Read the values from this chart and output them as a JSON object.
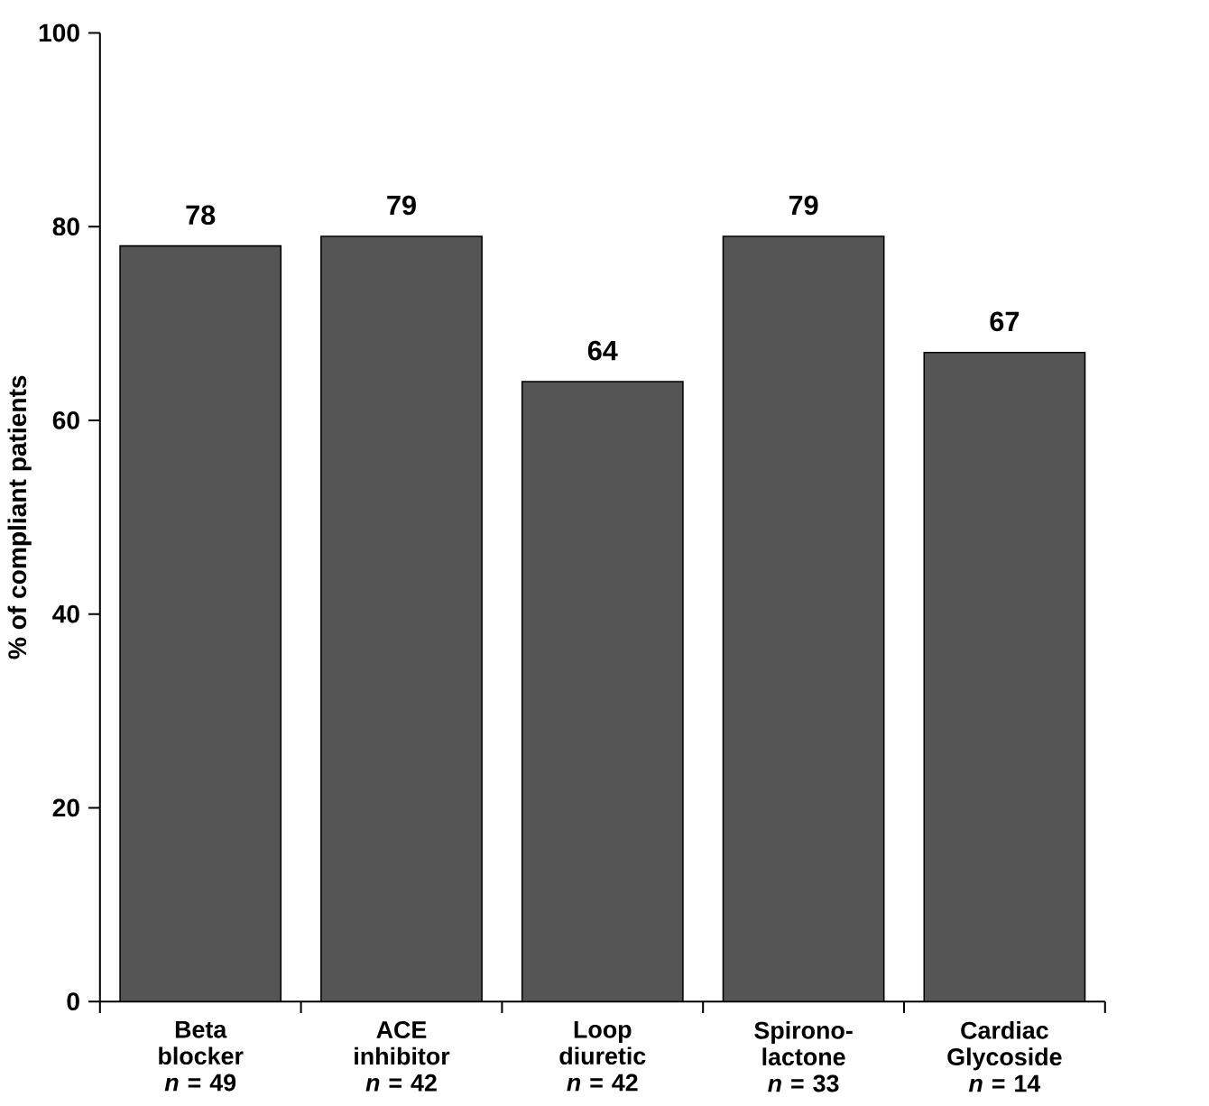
{
  "chart_data": {
    "type": "bar",
    "ylabel": "% of compliant patients",
    "categories": [
      "Beta blocker\n*n* = 49",
      "ACE inhibitor\n*n* = 42",
      "Loop diuretic\n*n* = 42",
      "Spirono-lactone\n*n* = 33",
      "Cardiac Glycoside\n*n* = 14"
    ],
    "values": [
      78,
      79,
      64,
      79,
      67
    ],
    "color": "#555555",
    "ylim": [
      0,
      100
    ],
    "yticks": [
      0,
      20,
      40,
      60,
      80,
      100
    ],
    "data_labels": true,
    "grid": false
  }
}
